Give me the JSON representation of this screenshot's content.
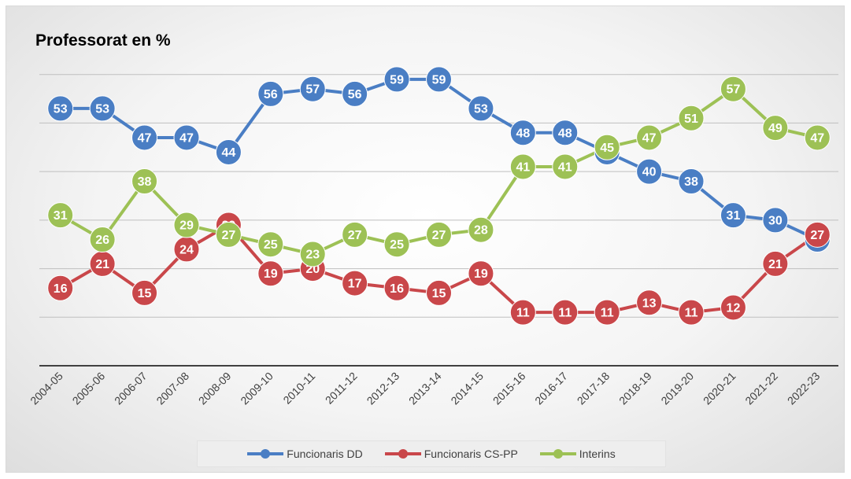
{
  "chart_data": {
    "type": "line",
    "title": "Professorat en %",
    "categories": [
      "2004-05",
      "2005-06",
      "2006-07",
      "2007-08",
      "2008-09",
      "2009-10",
      "2010-11",
      "2011-12",
      "2012-13",
      "2013-14",
      "2014-15",
      "2015-16",
      "2016-17",
      "2017-18",
      "2018-19",
      "2019-20",
      "2020-21",
      "2021-22",
      "2022-23"
    ],
    "series": [
      {
        "name": "Funcionaris DD",
        "color": "#4a7ec4",
        "values": [
          53,
          53,
          47,
          47,
          44,
          56,
          57,
          56,
          59,
          59,
          53,
          48,
          48,
          44,
          40,
          38,
          31,
          30,
          26
        ]
      },
      {
        "name": "Funcionaris CS-PP",
        "color": "#c9474a",
        "values": [
          16,
          21,
          15,
          24,
          29,
          19,
          20,
          17,
          16,
          15,
          19,
          11,
          11,
          11,
          13,
          11,
          12,
          21,
          27
        ]
      },
      {
        "name": "Interins",
        "color": "#9dc155",
        "values": [
          31,
          26,
          38,
          29,
          27,
          25,
          23,
          27,
          25,
          27,
          28,
          41,
          41,
          45,
          47,
          51,
          57,
          49,
          47
        ]
      }
    ],
    "ylim": [
      0,
      70
    ],
    "grid": true,
    "legend_position": "bottom"
  }
}
